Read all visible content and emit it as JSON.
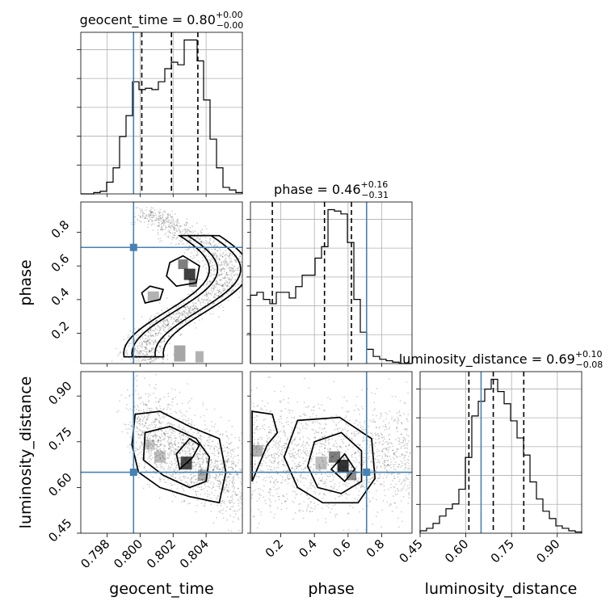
{
  "chart_data": {
    "type": "corner",
    "parameters": [
      "geocent_time",
      "phase",
      "luminosity_distance"
    ],
    "truths": {
      "geocent_time": 0.7996,
      "phase": 0.71,
      "luminosity_distance": 0.65
    },
    "colors": {
      "truth": "#4682b4",
      "contour": "#000000",
      "grid": "#b0b0b0"
    },
    "ranges": {
      "geocent_time": [
        0.7964,
        0.8062
      ],
      "phase": [
        0.02,
        0.98
      ],
      "luminosity_distance": [
        0.45,
        0.98
      ]
    },
    "ticks": {
      "geocent_time": [
        0.798,
        0.8,
        0.802,
        0.804
      ],
      "geocent_time_labels": [
        "0.798",
        "0.800",
        "0.802",
        "0.804"
      ],
      "phase": [
        0.2,
        0.4,
        0.6,
        0.8
      ],
      "phase_labels": [
        "0.2",
        "0.4",
        "0.6",
        "0.8"
      ],
      "luminosity_distance": [
        0.45,
        0.6,
        0.75,
        0.9
      ],
      "luminosity_distance_labels": [
        "0.45",
        "0.60",
        "0.75",
        "0.90"
      ]
    },
    "titles": {
      "geocent_time": {
        "prefix": "geocent_time = 0.80",
        "sup": "+0.00",
        "sub": "−0.00"
      },
      "phase": {
        "prefix": "phase = 0.46",
        "sup": "+0.16",
        "sub": "−0.31"
      },
      "luminosity_distance": {
        "prefix": "luminosity_distance = 0.69",
        "sup": "+0.10",
        "sub": "−0.08"
      }
    },
    "quantiles": {
      "geocent_time": [
        0.8001,
        0.8019,
        0.8035
      ],
      "phase": [
        0.15,
        0.46,
        0.62
      ],
      "luminosity_distance": [
        0.61,
        0.69,
        0.79
      ]
    },
    "histograms": {
      "geocent_time": {
        "edges_range": [
          0.7964,
          0.8062
        ],
        "counts": [
          0,
          0,
          1,
          2,
          9,
          20,
          44,
          60,
          86,
          80,
          81,
          80,
          86,
          96,
          101,
          99,
          118,
          118,
          102,
          72,
          42,
          20,
          5,
          3,
          1
        ]
      },
      "phase": {
        "edges_range": [
          0.02,
          0.98
        ],
        "counts": [
          48,
          50,
          45,
          42,
          50,
          50,
          46,
          54,
          62,
          62,
          74,
          82,
          108,
          107,
          105,
          85,
          45,
          22,
          10,
          5,
          3,
          2,
          1,
          0,
          0
        ]
      },
      "luminosity_distance": {
        "edges_range": [
          0.45,
          0.98
        ],
        "counts": [
          2,
          4,
          8,
          14,
          20,
          24,
          36,
          62,
          96,
          108,
          118,
          126,
          116,
          106,
          92,
          78,
          64,
          42,
          28,
          18,
          12,
          6,
          4,
          2,
          1
        ]
      }
    },
    "axis_labels": {
      "x": [
        "geocent_time",
        "phase",
        "luminosity_distance"
      ],
      "y": [
        "phase",
        "luminosity_distance"
      ]
    }
  }
}
